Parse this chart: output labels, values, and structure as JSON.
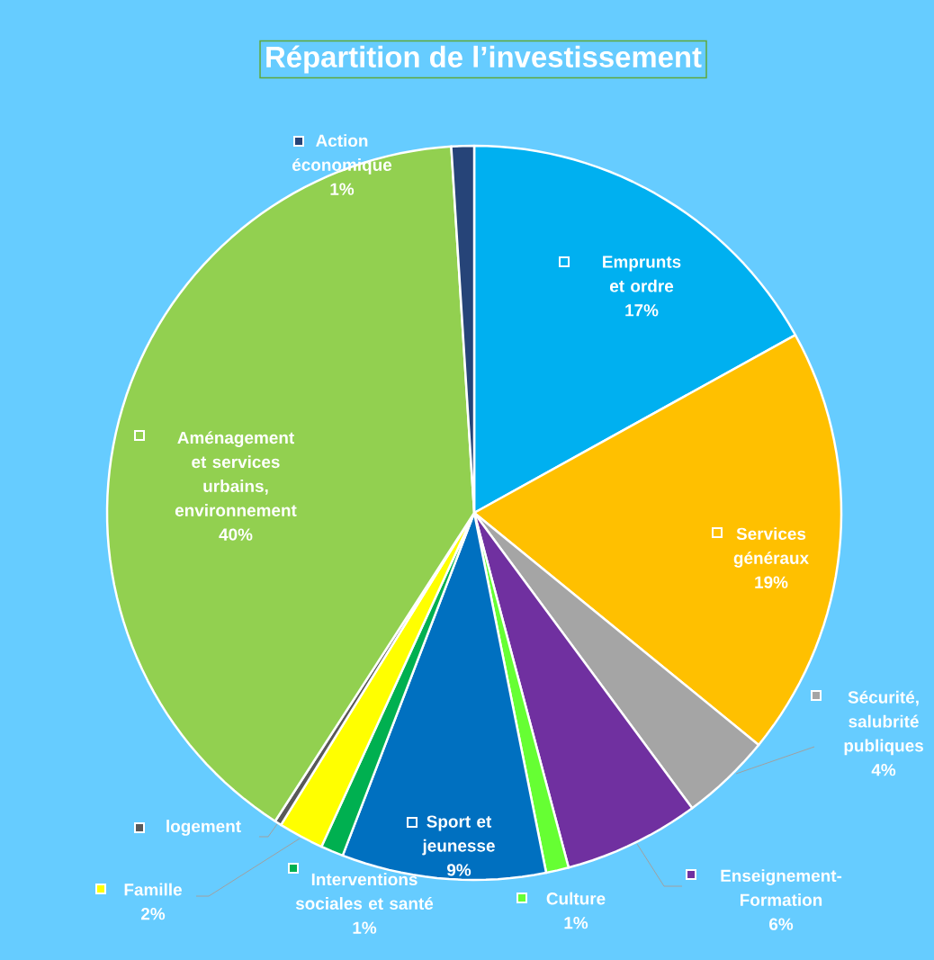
{
  "chart_data": {
    "type": "pie",
    "title": "Répartition de l’investissement",
    "categories": [
      "Emprunts et ordre",
      "Services généraux",
      "Sécurité, salubrité publiques",
      "Enseignement-Formation",
      "Culture",
      "Sport et jeunesse",
      "Interventions sociales et santé",
      "Famille",
      "logement",
      "Aménagement et services urbains, environnement",
      "Action économique"
    ],
    "values": [
      17,
      19,
      4,
      6,
      1,
      9,
      1,
      2,
      0.3,
      40,
      1
    ],
    "value_labels": [
      "17%",
      "19%",
      "4%",
      "6%",
      "1%",
      "9%",
      "1%",
      "2%",
      null,
      "40%",
      "1%"
    ],
    "colors": [
      "#00b0f0",
      "#ffc000",
      "#a5a5a5",
      "#7030a0",
      "#66ff33",
      "#0070c0",
      "#00b050",
      "#ffff00",
      "#595959",
      "#92d050",
      "#264478"
    ],
    "legend": "right"
  }
}
